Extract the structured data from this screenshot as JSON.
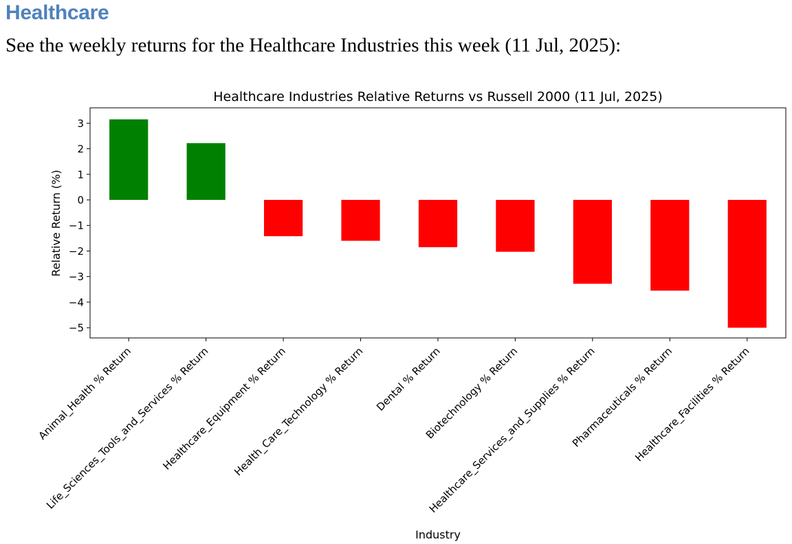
{
  "page": {
    "heading": "Healthcare",
    "intro": "See the weekly returns for the Healthcare Industries this week (11 Jul, 2025):"
  },
  "chart_data": {
    "type": "bar",
    "title": "Healthcare Industries Relative Returns vs Russell 2000 (11 Jul, 2025)",
    "xlabel": "Industry",
    "ylabel": "Relative Return (%)",
    "ylim": [
      -5.4,
      3.6
    ],
    "yticks": [
      3,
      2,
      1,
      0,
      -1,
      -2,
      -3,
      -4,
      -5
    ],
    "ytick_labels": [
      "3",
      "2",
      "1",
      "0",
      "−1",
      "−2",
      "−3",
      "−4",
      "−5"
    ],
    "categories": [
      "Animal_Health % Return",
      "Life_Sciences_Tools_and_Services % Return",
      "Healthcare_Equipment % Return",
      "Health_Care_Technology % Return",
      "Dental % Return",
      "Biotechnology % Return",
      "Healthcare_Services_and_Supplies % Return",
      "Pharmaceuticals % Return",
      "Healthcare_Facilities % Return"
    ],
    "values": [
      3.15,
      2.22,
      -1.42,
      -1.6,
      -1.85,
      -2.03,
      -3.28,
      -3.55,
      -5.0
    ],
    "colors": {
      "positive": "#008000",
      "negative": "#ff0000"
    },
    "grid": false,
    "legend": "none"
  }
}
